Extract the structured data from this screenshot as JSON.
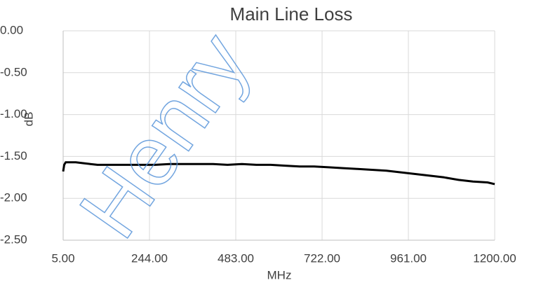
{
  "chart_data": {
    "type": "line",
    "title": "Main Line Loss",
    "xlabel": "MHz",
    "ylabel": "dB",
    "watermark": "Henry",
    "x": [
      5,
      8,
      12,
      20,
      40,
      60,
      80,
      100,
      140,
      180,
      220,
      260,
      300,
      340,
      380,
      420,
      460,
      500,
      540,
      580,
      620,
      660,
      700,
      740,
      780,
      820,
      860,
      900,
      940,
      980,
      1020,
      1060,
      1100,
      1140,
      1180,
      1200
    ],
    "series": [
      {
        "name": "Main Line Loss",
        "color": "#000000",
        "values": [
          -1.68,
          -1.6,
          -1.57,
          -1.57,
          -1.57,
          -1.58,
          -1.59,
          -1.6,
          -1.6,
          -1.6,
          -1.6,
          -1.6,
          -1.59,
          -1.59,
          -1.59,
          -1.59,
          -1.6,
          -1.59,
          -1.6,
          -1.6,
          -1.61,
          -1.62,
          -1.62,
          -1.63,
          -1.64,
          -1.65,
          -1.66,
          -1.67,
          -1.69,
          -1.71,
          -1.73,
          -1.75,
          -1.78,
          -1.8,
          -1.81,
          -1.83
        ]
      }
    ],
    "xlim": [
      5,
      1200
    ],
    "xticks": [
      {
        "value": 5,
        "label": "5.00"
      },
      {
        "value": 244,
        "label": "244.00"
      },
      {
        "value": 483,
        "label": "483.00"
      },
      {
        "value": 722,
        "label": "722.00"
      },
      {
        "value": 961,
        "label": "961.00"
      },
      {
        "value": 1200,
        "label": "1200.00"
      }
    ],
    "ylim": [
      -2.5,
      0
    ],
    "yticks": [
      {
        "value": 0,
        "label": "0.00"
      },
      {
        "value": -0.5,
        "label": "-0.50"
      },
      {
        "value": -1,
        "label": "-1.00"
      },
      {
        "value": -1.5,
        "label": "-1.50"
      },
      {
        "value": -2,
        "label": "-2.00"
      },
      {
        "value": -2.5,
        "label": "-2.50"
      }
    ],
    "grid": true
  }
}
